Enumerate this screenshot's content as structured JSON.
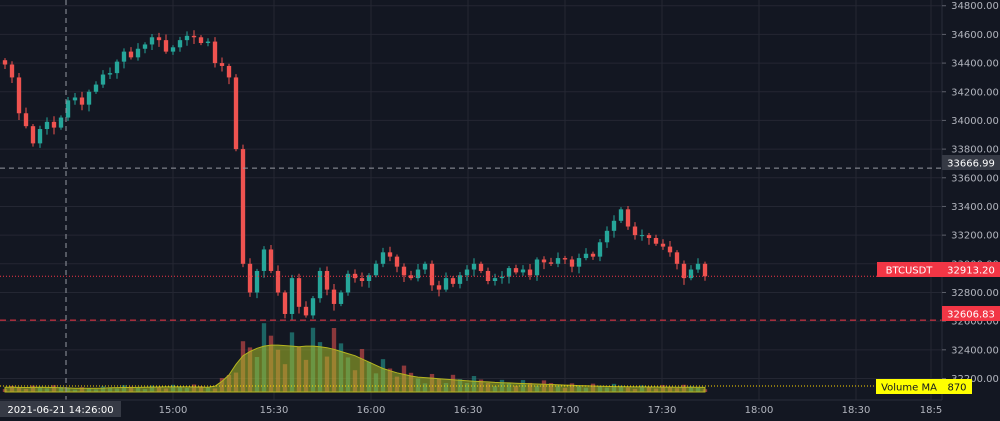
{
  "chart_data": {
    "type": "candlestick",
    "symbol": "BTCUSDT",
    "x_ticks": [
      "15:00",
      "15:30",
      "16:00",
      "16:30",
      "17:00",
      "17:30",
      "18:00",
      "18:30",
      "18:5"
    ],
    "crosshair_time_label": "2021-06-21 14:26:00",
    "crosshair_price_label": "33666.99",
    "y_ticks": [
      34800,
      34600,
      34400,
      34200,
      34000,
      33800,
      33600,
      33400,
      33200,
      33000,
      32800,
      32600,
      32400,
      32200
    ],
    "ylim": [
      32050,
      34840
    ],
    "grid": true,
    "last_price": 32913.2,
    "last_price_label": "32913.20",
    "reference_line": 32606.83,
    "reference_line_label": "32606.83",
    "volume_ma_title": "Volume MA",
    "volume_ma_value": "870",
    "series": {
      "candle_closes": [
        34390,
        34300,
        34050,
        33960,
        33840,
        33940,
        33990,
        33950,
        34020,
        34140,
        34160,
        34110,
        34200,
        34250,
        34320,
        34330,
        34410,
        34480,
        34440,
        34500,
        34530,
        34580,
        34560,
        34480,
        34510,
        34560,
        34590,
        34580,
        34540,
        34550,
        34400,
        34380,
        34300,
        33800,
        33000,
        32800,
        32950,
        33100,
        32950,
        32800,
        32650,
        32900,
        32700,
        32640,
        32760,
        32950,
        32820,
        32720,
        32800,
        32930,
        32900,
        32880,
        32920,
        33000,
        33080,
        33050,
        32980,
        32920,
        32900,
        32960,
        33000,
        32850,
        32820,
        32900,
        32860,
        32920,
        32960,
        33000,
        32950,
        32880,
        32900,
        32910,
        32970,
        32940,
        32960,
        32920,
        33030,
        33010,
        33000,
        33040,
        33030,
        32980,
        33040,
        33070,
        33050,
        33150,
        33230,
        33300,
        33380,
        33260,
        33200,
        33200,
        33180,
        33140,
        33120,
        33080,
        33000,
        32900,
        32960,
        33000,
        32913
      ],
      "volume_ma": [
        90,
        88,
        86,
        85,
        86,
        88,
        86,
        84,
        80,
        76,
        72,
        70,
        70,
        72,
        74,
        78,
        82,
        84,
        84,
        86,
        90,
        92,
        94,
        95,
        96,
        96,
        95,
        94,
        92,
        90,
        110,
        200,
        320,
        520,
        680,
        760,
        820,
        860,
        880,
        880,
        870,
        860,
        850,
        860,
        860,
        850,
        830,
        800,
        760,
        720,
        680,
        620,
        560,
        500,
        440,
        400,
        360,
        330,
        300,
        280,
        270,
        260,
        250,
        240,
        230,
        220,
        210,
        200,
        195,
        190,
        180,
        175,
        170,
        165,
        160,
        155,
        150,
        145,
        140,
        135,
        130,
        125,
        120,
        116,
        112,
        108,
        105,
        102,
        100,
        98,
        96,
        95,
        94,
        93,
        92,
        91,
        90,
        90,
        89,
        88,
        87
      ]
    }
  }
}
